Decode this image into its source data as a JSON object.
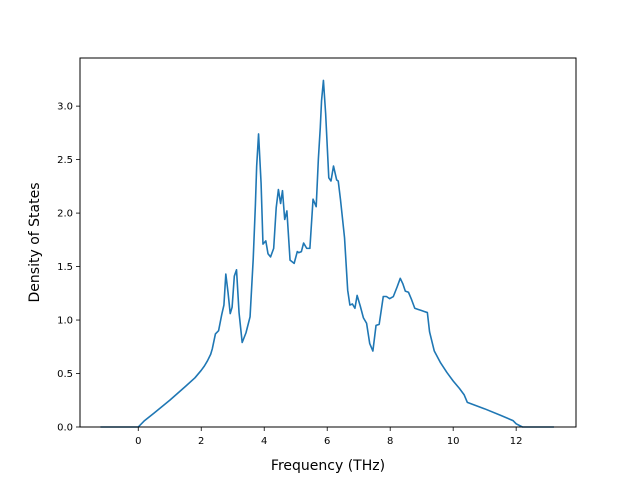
{
  "chart_data": {
    "type": "line",
    "title": "",
    "xlabel": "Frequency (THz)",
    "ylabel": "Density of States",
    "xlim": [
      -1.85,
      13.9
    ],
    "ylim": [
      0.0,
      3.45
    ],
    "xticks": [
      0,
      2,
      4,
      6,
      8,
      10,
      12
    ],
    "yticks": [
      0.0,
      0.5,
      1.0,
      1.5,
      2.0,
      2.5,
      3.0
    ],
    "xtick_labels": [
      "0",
      "2",
      "4",
      "6",
      "8",
      "10",
      "12"
    ],
    "ytick_labels": [
      "0.0",
      "0.5",
      "1.0",
      "1.5",
      "2.0",
      "2.5",
      "3.0"
    ],
    "grid": false,
    "legend": "none",
    "line_color": "#1f77b4",
    "series": [
      {
        "x": [
          -1.2,
          0.0,
          0.2,
          0.5,
          1.0,
          1.5,
          1.8,
          2.0,
          2.1,
          2.2,
          2.3,
          2.35,
          2.45,
          2.55,
          2.65,
          2.72,
          2.78,
          2.85,
          2.92,
          2.98,
          3.05,
          3.12,
          3.2,
          3.3,
          3.42,
          3.55,
          3.65,
          3.72,
          3.76,
          3.82,
          3.9,
          3.96,
          4.05,
          4.12,
          4.2,
          4.3,
          4.38,
          4.45,
          4.52,
          4.58,
          4.65,
          4.72,
          4.82,
          4.95,
          5.05,
          5.1,
          5.18,
          5.25,
          5.35,
          5.45,
          5.55,
          5.65,
          5.72,
          5.78,
          5.82,
          5.88,
          5.95,
          6.05,
          6.12,
          6.2,
          6.3,
          6.35,
          6.42,
          6.55,
          6.65,
          6.72,
          6.8,
          6.88,
          6.95,
          7.05,
          7.15,
          7.25,
          7.35,
          7.45,
          7.55,
          7.65,
          7.72,
          7.78,
          7.88,
          7.98,
          8.1,
          8.22,
          8.32,
          8.4,
          8.48,
          8.58,
          8.68,
          8.78,
          8.88,
          8.98,
          9.08,
          9.18,
          9.25,
          9.4,
          9.6,
          9.8,
          10.0,
          10.2,
          10.35,
          10.45,
          11.0,
          11.5,
          11.9,
          12.0,
          12.2,
          13.2
        ],
        "y": [
          0.0,
          0.0,
          0.06,
          0.13,
          0.25,
          0.38,
          0.46,
          0.53,
          0.57,
          0.62,
          0.68,
          0.73,
          0.87,
          0.9,
          1.05,
          1.14,
          1.43,
          1.26,
          1.06,
          1.12,
          1.41,
          1.47,
          1.07,
          0.79,
          0.88,
          1.03,
          1.57,
          2.08,
          2.44,
          2.74,
          2.28,
          1.71,
          1.74,
          1.62,
          1.59,
          1.67,
          2.05,
          2.22,
          2.09,
          2.21,
          1.94,
          2.02,
          1.56,
          1.53,
          1.64,
          1.63,
          1.64,
          1.72,
          1.67,
          1.67,
          2.13,
          2.06,
          2.51,
          2.8,
          3.05,
          3.24,
          2.93,
          2.33,
          2.3,
          2.44,
          2.31,
          2.3,
          2.13,
          1.77,
          1.28,
          1.14,
          1.15,
          1.11,
          1.23,
          1.13,
          1.02,
          0.97,
          0.78,
          0.71,
          0.95,
          0.96,
          1.1,
          1.22,
          1.22,
          1.2,
          1.22,
          1.31,
          1.39,
          1.34,
          1.27,
          1.26,
          1.19,
          1.11,
          1.1,
          1.09,
          1.08,
          1.07,
          0.89,
          0.71,
          0.6,
          0.51,
          0.43,
          0.36,
          0.3,
          0.23,
          0.17,
          0.11,
          0.06,
          0.03,
          0.0,
          0.0
        ]
      }
    ]
  }
}
